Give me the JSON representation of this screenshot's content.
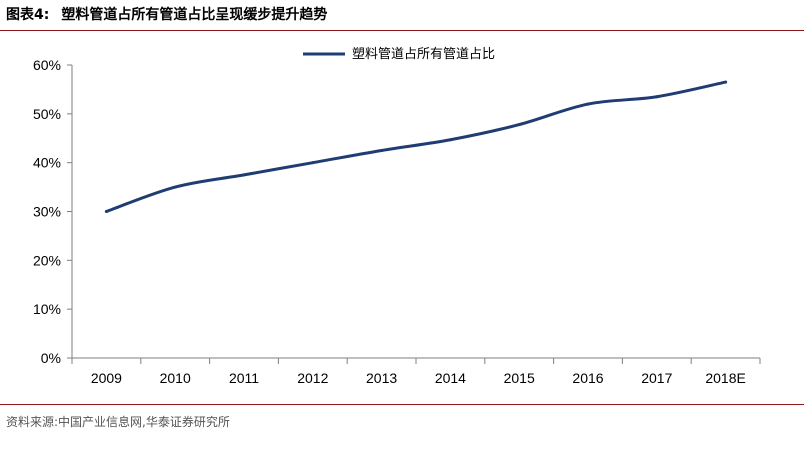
{
  "figure": {
    "label": "图表4:",
    "title": "塑料管道占所有管道占比呈现缓步提升趋势",
    "source": "资料来源:中国产业信息网,华泰证券研究所"
  },
  "colors": {
    "line": "#1f3c73",
    "axis": "#7f7f7f",
    "rule": "#8b1a1a"
  },
  "chart_data": {
    "type": "line",
    "title": "",
    "xlabel": "",
    "ylabel": "",
    "categories": [
      "2009",
      "2010",
      "2011",
      "2012",
      "2013",
      "2014",
      "2015",
      "2016",
      "2017",
      "2018E"
    ],
    "series": [
      {
        "name": "塑料管道占所有管道占比",
        "values": [
          30.0,
          35.0,
          37.5,
          40.0,
          42.5,
          44.7,
          47.8,
          52.0,
          53.5,
          56.5
        ]
      }
    ],
    "ylim": [
      0,
      60
    ],
    "yticks": [
      "0%",
      "10%",
      "20%",
      "30%",
      "40%",
      "50%",
      "60%"
    ],
    "grid": false,
    "legend": "top-center"
  }
}
